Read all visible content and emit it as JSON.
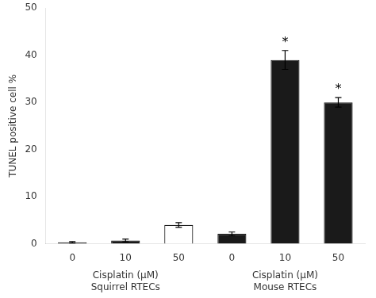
{
  "chart_data": {
    "type": "bar",
    "categories": [
      "0",
      "10",
      "50",
      "0",
      "10",
      "50"
    ],
    "values": [
      0.3,
      0.7,
      4.0,
      2.1,
      39.0,
      30.0
    ],
    "errors": [
      0.15,
      0.3,
      0.5,
      0.4,
      2.0,
      1.0
    ],
    "colors": [
      "#1a1a1a",
      "#1a1a1a",
      "#ffffff",
      "#1a1a1a",
      "#1a1a1a",
      "#1a1a1a"
    ],
    "color": "#1a1a1a",
    "annotations": [
      null,
      null,
      null,
      null,
      "*",
      "*"
    ],
    "groups": [
      "Cisplatin (μM)\nSquirrel RTECs",
      "Cisplatin (μM)\nMouse RTECs"
    ],
    "ylabel": "TUNEL positive cell %",
    "ylim": [
      0,
      50
    ],
    "yticks": [
      0,
      10,
      20,
      30,
      40,
      50
    ],
    "grid": false
  }
}
